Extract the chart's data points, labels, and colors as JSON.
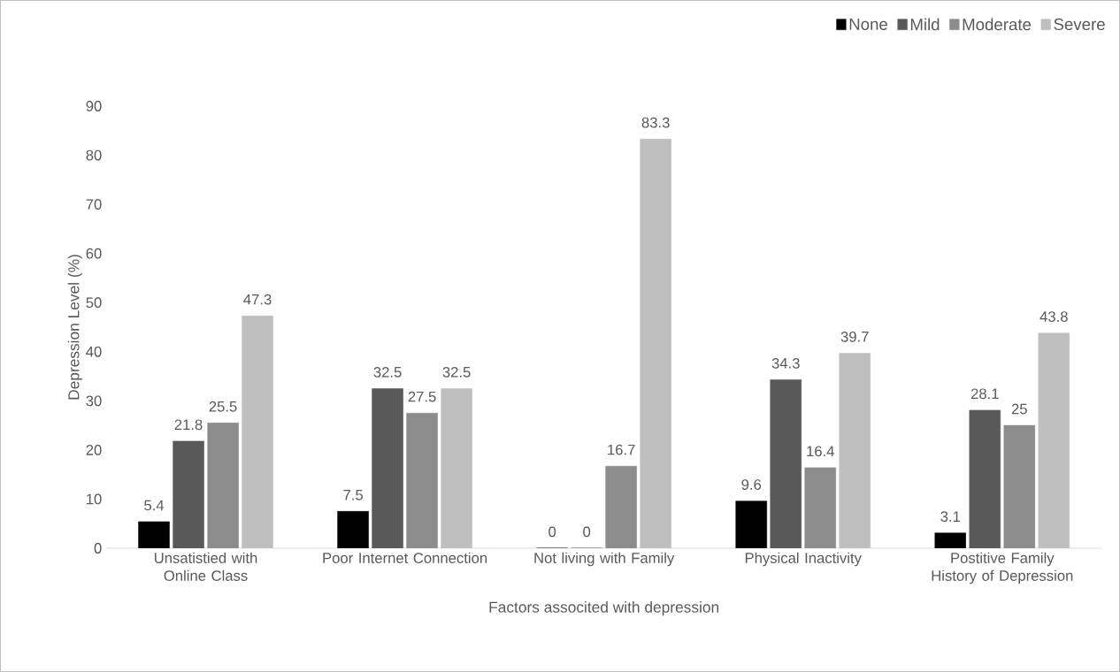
{
  "chart_data": {
    "type": "bar",
    "xlabel": "Factors associted with depression",
    "ylabel": "Depression Level (%)",
    "categories": [
      "Unsatistied with Online Class",
      "Poor Internet Connection",
      "Not living with Family",
      "Physical Inactivity",
      "Postitive Family History of Depression"
    ],
    "series": [
      {
        "name": "None",
        "color": "#000000",
        "values": [
          5.4,
          7.5,
          0,
          9.6,
          3.1
        ]
      },
      {
        "name": "Mild",
        "color": "#595959",
        "values": [
          21.8,
          32.5,
          0,
          34.3,
          28.1
        ]
      },
      {
        "name": "Moderate",
        "color": "#8c8c8c",
        "values": [
          25.5,
          27.5,
          16.7,
          16.4,
          25
        ]
      },
      {
        "name": "Severe",
        "color": "#bfbfbf",
        "values": [
          47.3,
          32.5,
          83.3,
          39.7,
          43.8
        ]
      }
    ],
    "ylim": [
      0,
      90
    ],
    "yticks": [
      0,
      10,
      20,
      30,
      40,
      50,
      60,
      70,
      80,
      90
    ],
    "data_labels": true,
    "grid": false,
    "legend": "top right"
  }
}
